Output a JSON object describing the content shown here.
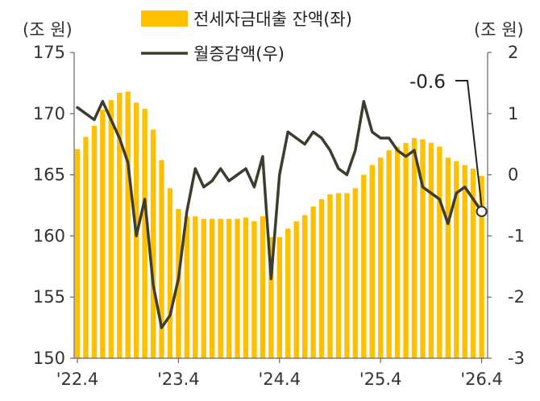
{
  "chart_data": {
    "type": "bar",
    "title": "",
    "left_unit": "(조 원)",
    "right_unit": "(조 원)",
    "x_tick_labels": [
      "'22.4",
      "'23.4",
      "'24.4",
      "'25.4",
      "'26.4"
    ],
    "left_axis": {
      "ylim": [
        150,
        175
      ],
      "ticks": [
        "150",
        "155",
        "160",
        "165",
        "170",
        "175"
      ]
    },
    "right_axis": {
      "ylim": [
        -3,
        2
      ],
      "ticks": [
        "-3",
        "-2",
        "-1",
        "0",
        "1",
        "2"
      ]
    },
    "grid": false,
    "legend_position": "top-center",
    "series": [
      {
        "name": "전세자금대출 잔액(좌)",
        "type": "bar",
        "axis": "left",
        "color": "#FFC000",
        "values": [
          167.1,
          168.1,
          169.0,
          170.3,
          171.1,
          171.7,
          171.8,
          170.9,
          170.4,
          168.7,
          166.2,
          163.9,
          162.2,
          161.6,
          161.6,
          161.4,
          161.4,
          161.4,
          161.4,
          161.4,
          161.5,
          161.2,
          161.6,
          159.9,
          159.9,
          160.6,
          161.2,
          161.7,
          162.4,
          163.0,
          163.4,
          163.5,
          163.5,
          163.9,
          165.0,
          165.8,
          166.4,
          167.0,
          167.3,
          167.6,
          168.0,
          167.9,
          167.6,
          167.3,
          166.4,
          166.1,
          165.8,
          165.5,
          164.9
        ]
      },
      {
        "name": "월증감액(우)",
        "type": "line",
        "axis": "right",
        "color": "#3D3D2E",
        "values": [
          1.1,
          1.0,
          0.9,
          1.2,
          0.9,
          0.6,
          0.2,
          -1.0,
          -0.4,
          -1.8,
          -2.5,
          -2.3,
          -1.7,
          -0.6,
          0.1,
          -0.2,
          -0.1,
          0.1,
          -0.1,
          0.0,
          0.1,
          -0.2,
          0.3,
          -1.7,
          0.0,
          0.7,
          0.6,
          0.5,
          0.7,
          0.6,
          0.4,
          0.1,
          0.0,
          0.4,
          1.2,
          0.7,
          0.6,
          0.6,
          0.4,
          0.3,
          0.4,
          -0.2,
          -0.3,
          -0.4,
          -0.8,
          -0.3,
          -0.2,
          -0.4,
          -0.6
        ]
      }
    ],
    "annotation": {
      "text": "-0.6",
      "series": "월증감액(우)",
      "point_index": 48
    }
  }
}
